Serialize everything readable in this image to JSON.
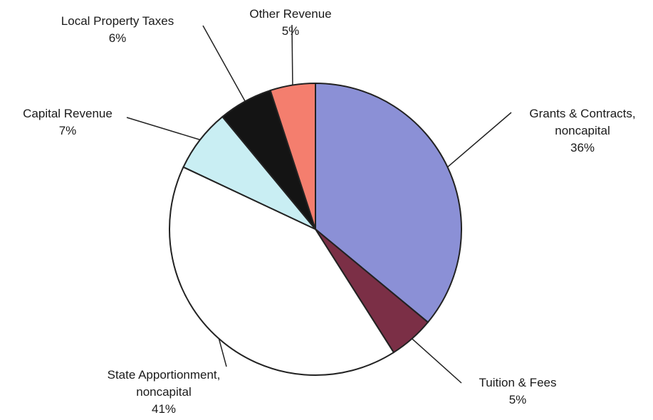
{
  "chart_data": {
    "type": "pie",
    "labels": [
      "Grants & Contracts, noncapital",
      "Tuition & Fees",
      "State Apportionment, noncapital",
      "Capital Revenue",
      "Local Property Taxes",
      "Other Revenue"
    ],
    "values": [
      36,
      5,
      41,
      7,
      6,
      5
    ],
    "value_labels": [
      "36%",
      "5%",
      "41%",
      "7%",
      "6%",
      "5%"
    ],
    "colors": [
      "#8b90d6",
      "#7b2f46",
      "#ffffff",
      "#c9eef3",
      "#141414",
      "#f47e6e"
    ]
  }
}
